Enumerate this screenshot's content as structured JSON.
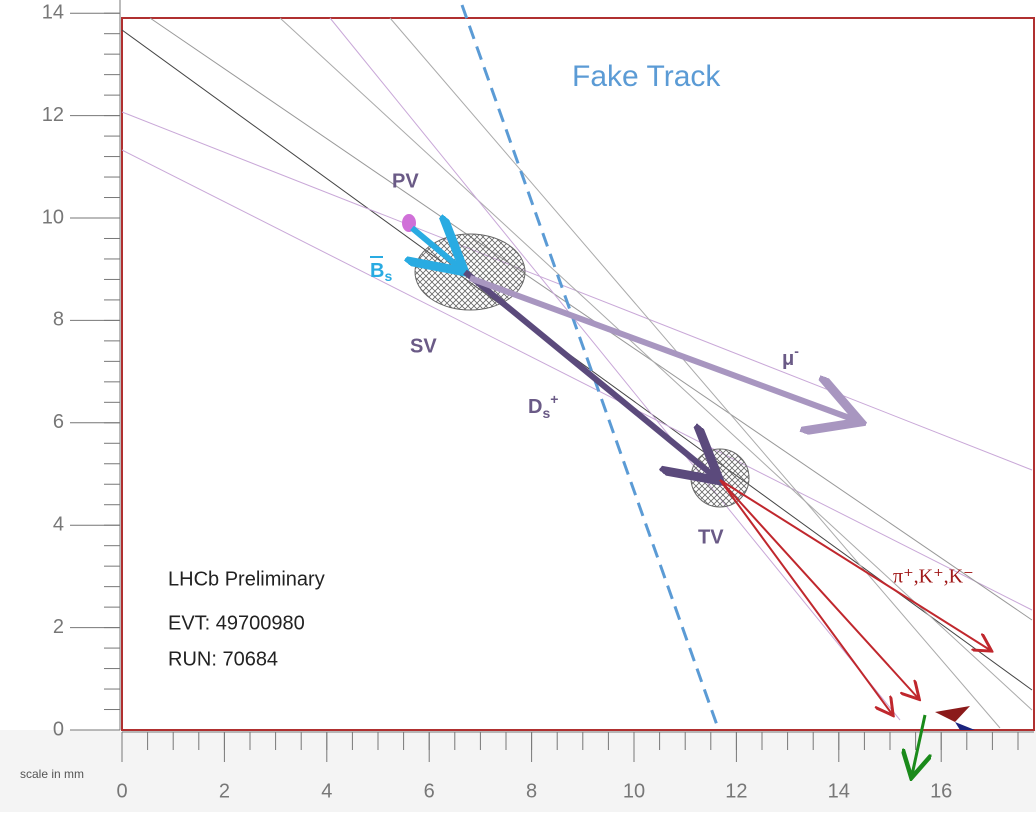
{
  "display": {
    "y_ticks": [
      14,
      12,
      10,
      8,
      6,
      4,
      2,
      0
    ],
    "x_ticks": [
      0,
      2,
      4,
      6,
      8,
      10,
      12,
      14,
      16
    ],
    "scale_label": "scale in mm",
    "fake_track": "Fake Track",
    "pv": "PV",
    "sv": "SV",
    "tv": "TV",
    "bs": {
      "base": "B",
      "sub": "s"
    },
    "ds": {
      "base": "D",
      "sub": "s",
      "sup": "+"
    },
    "mu": {
      "base": "μ",
      "sup": "-"
    },
    "tracks": "π⁺,K⁺,K⁻",
    "experiment": "LHCb Preliminary",
    "event": "EVT: 49700980",
    "run": "RUN: 70684"
  }
}
